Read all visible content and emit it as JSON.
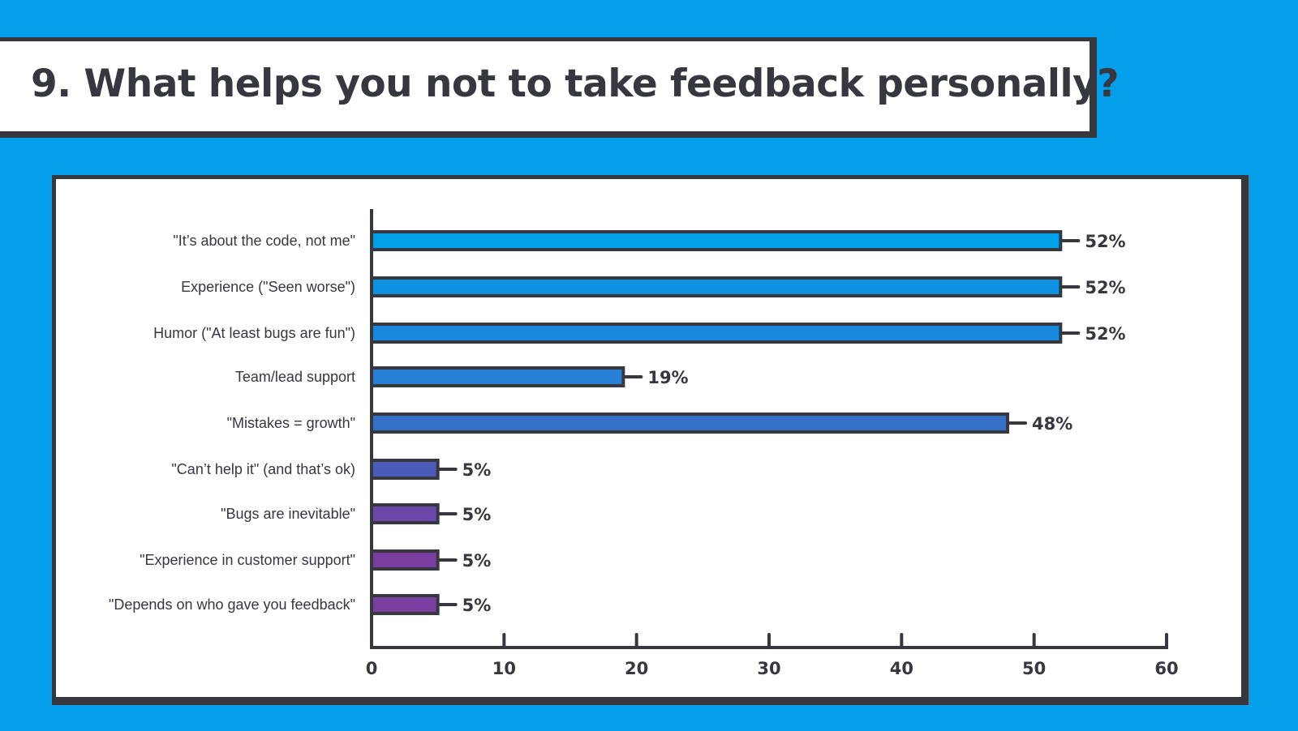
{
  "title": "9. What helps you not to take feedback personally?",
  "colors": {
    "background": "#039fea",
    "outline": "#37373f"
  },
  "chart_data": {
    "type": "bar",
    "orientation": "horizontal",
    "title": "9. What helps you not to take feedback personally?",
    "categories": [
      "\"It’s about the code, not me\"",
      "Experience (\"Seen worse\")",
      "Humor (\"At least bugs are fun\")",
      "Team/lead support",
      "\"Mistakes = growth\"",
      "\"Can’t help it\" (and that’s ok)",
      "\"Bugs are inevitable\"",
      "\"Experience in customer support\"",
      "\"Depends on who gave you feedback\""
    ],
    "values": [
      52,
      52,
      52,
      19,
      48,
      5,
      5,
      5,
      5
    ],
    "value_labels": [
      "52%",
      "52%",
      "52%",
      "19%",
      "48%",
      "5%",
      "5%",
      "5%",
      "5%"
    ],
    "bar_colors": [
      "#00a0e9",
      "#0d93e1",
      "#1a88dc",
      "#277fd6",
      "#3470c8",
      "#4b5bb8",
      "#6a47a8",
      "#7a3da0",
      "#7a3da0"
    ],
    "xlim": [
      0,
      60
    ],
    "xticks": [
      0,
      10,
      20,
      30,
      40,
      50,
      60
    ],
    "xlabel": "",
    "ylabel": "",
    "grid": false
  }
}
